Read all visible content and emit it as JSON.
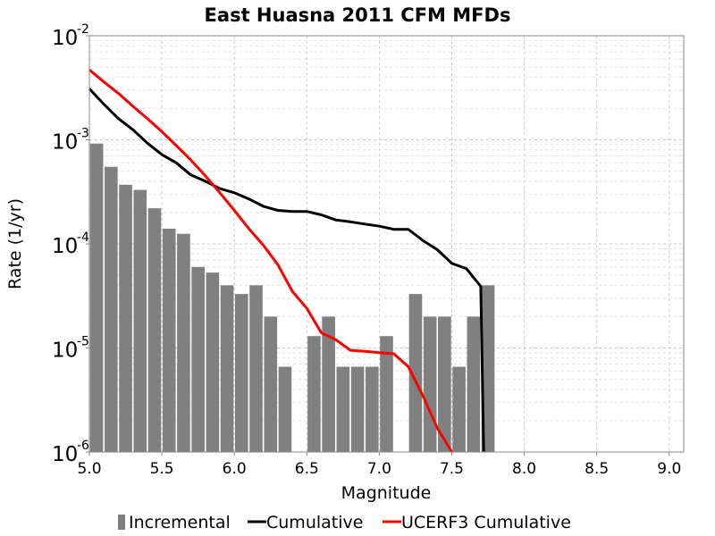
{
  "chart_data": {
    "type": "bar",
    "title": "East Huasna 2011 CFM MFDs",
    "xlabel": "Magnitude",
    "ylabel": "Rate (1/yr)",
    "xlim": [
      5.0,
      9.1
    ],
    "ylim": [
      1e-06,
      0.01
    ],
    "yscale": "log",
    "grid": true,
    "legend_position": "bottom",
    "xticks": [
      "5.0",
      "5.5",
      "6.0",
      "6.5",
      "7.0",
      "7.5",
      "8.0",
      "8.5",
      "9.0"
    ],
    "yticks": [
      {
        "base": "10",
        "exp": "-2",
        "value": 0.01
      },
      {
        "base": "10",
        "exp": "-3",
        "value": 0.001
      },
      {
        "base": "10",
        "exp": "-4",
        "value": 0.0001
      },
      {
        "base": "10",
        "exp": "-5",
        "value": 1e-05
      },
      {
        "base": "10",
        "exp": "-6",
        "value": 1e-06
      }
    ],
    "series": [
      {
        "name": "Incremental",
        "kind": "bar",
        "color": "#808080",
        "bar_width": 0.1,
        "x": [
          5.05,
          5.15,
          5.25,
          5.35,
          5.45,
          5.55,
          5.65,
          5.75,
          5.85,
          5.95,
          6.05,
          6.15,
          6.25,
          6.35,
          6.45,
          6.55,
          6.65,
          6.75,
          6.85,
          6.95,
          7.05,
          7.15,
          7.25,
          7.35,
          7.45,
          7.55,
          7.65,
          7.75
        ],
        "y": [
          0.00092,
          0.00055,
          0.00037,
          0.00033,
          0.00022,
          0.00014,
          0.000125,
          6e-05,
          5.3e-05,
          4e-05,
          3.3e-05,
          4e-05,
          2e-05,
          6.6e-06,
          0,
          1.3e-05,
          2e-05,
          6.6e-06,
          6.6e-06,
          6.6e-06,
          1.3e-05,
          0,
          3.3e-05,
          2e-05,
          2e-05,
          6.6e-06,
          2e-05,
          4e-05
        ]
      },
      {
        "name": "Cumulative",
        "kind": "line",
        "color": "#000000",
        "x": [
          5.0,
          5.1,
          5.2,
          5.3,
          5.4,
          5.5,
          5.6,
          5.7,
          5.8,
          5.9,
          6.0,
          6.1,
          6.2,
          6.3,
          6.4,
          6.5,
          6.6,
          6.7,
          6.8,
          6.9,
          7.0,
          7.1,
          7.2,
          7.3,
          7.4,
          7.5,
          7.6,
          7.7,
          7.72
        ],
        "y": [
          0.0031,
          0.0022,
          0.0016,
          0.00125,
          0.00093,
          0.00072,
          0.0006,
          0.00046,
          0.0004,
          0.00034,
          0.00031,
          0.00027,
          0.00023,
          0.00021,
          0.000205,
          0.000205,
          0.00019,
          0.00017,
          0.000163,
          0.000155,
          0.000148,
          0.000138,
          0.000138,
          0.000108,
          8.8e-05,
          6.5e-05,
          5.8e-05,
          3.9e-05,
          8e-07
        ]
      },
      {
        "name": "UCERF3 Cumulative",
        "kind": "line",
        "color": "#ff0000",
        "x": [
          5.0,
          5.1,
          5.2,
          5.3,
          5.4,
          5.5,
          5.6,
          5.7,
          5.8,
          5.9,
          6.0,
          6.1,
          6.2,
          6.3,
          6.4,
          6.5,
          6.6,
          6.7,
          6.8,
          6.9,
          7.0,
          7.1,
          7.2,
          7.3,
          7.4,
          7.5
        ],
        "y": [
          0.0047,
          0.0036,
          0.0028,
          0.0021,
          0.0016,
          0.0012,
          0.00088,
          0.00064,
          0.00045,
          0.00031,
          0.00021,
          0.00014,
          9.7e-05,
          6.3e-05,
          3.5e-05,
          2.4e-05,
          1.4e-05,
          1.2e-05,
          9.5e-06,
          9.3e-06,
          9e-06,
          8.8e-06,
          6.6e-06,
          3.5e-06,
          1.7e-06,
          9.5e-07
        ]
      }
    ]
  }
}
